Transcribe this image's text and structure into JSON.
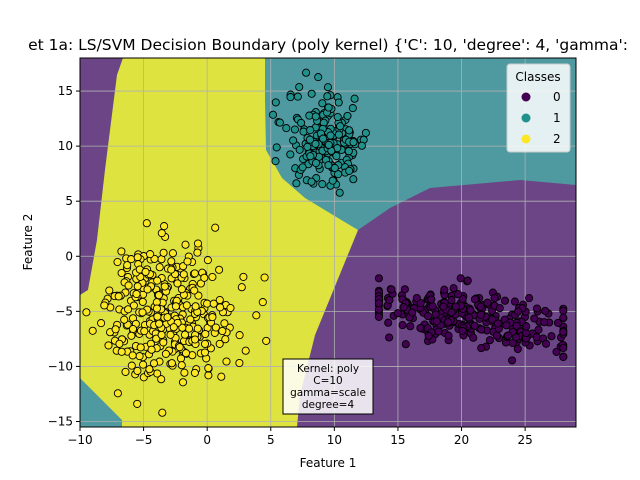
{
  "chart_data": {
    "type": "scatter",
    "title": "et 1a: LS/SVM Decision Boundary (poly kernel) {'C': 10, 'degree': 4, 'gamma':",
    "xlabel": "Feature 1",
    "ylabel": "Feature 2",
    "xlim": [
      -10,
      29
    ],
    "ylim": [
      -15.5,
      18
    ],
    "xticks": [
      -10,
      -5,
      0,
      5,
      10,
      15,
      20,
      25
    ],
    "yticks": [
      -15,
      -10,
      -5,
      0,
      5,
      10,
      15
    ],
    "grid": true,
    "legend": {
      "title": "Classes",
      "placement": "top-right",
      "entries": [
        "0",
        "1",
        "2"
      ]
    },
    "colors": {
      "class_0": "#440154",
      "class_1": "#21918c",
      "class_2": "#fde725",
      "region_0": "#6b4585",
      "region_1": "#4e9aa0",
      "region_2": "#dee33f"
    },
    "series": [
      {
        "name": "0",
        "cluster_center": [
          20.5,
          -5.5
        ],
        "spread_x": 4.2,
        "spread_y": 1.7,
        "approx_points": 300,
        "x_range": [
          13.5,
          28
        ],
        "y_range": [
          -10.8,
          -2
        ]
      },
      {
        "name": "1",
        "cluster_center": [
          9.5,
          10.5
        ],
        "spread_x": 1.6,
        "spread_y": 2.2,
        "approx_points": 200,
        "x_range": [
          3.5,
          14
        ],
        "y_range": [
          5,
          17
        ]
      },
      {
        "name": "2",
        "cluster_center": [
          -3,
          -5
        ],
        "spread_x": 2.6,
        "spread_y": 3.0,
        "approx_points": 350,
        "x_range": [
          -9.5,
          5.5
        ],
        "y_range": [
          -14.2,
          3
        ]
      }
    ],
    "annotation": [
      "Kernel: poly",
      "C=10",
      "gamma=scale",
      "degree=4"
    ]
  }
}
